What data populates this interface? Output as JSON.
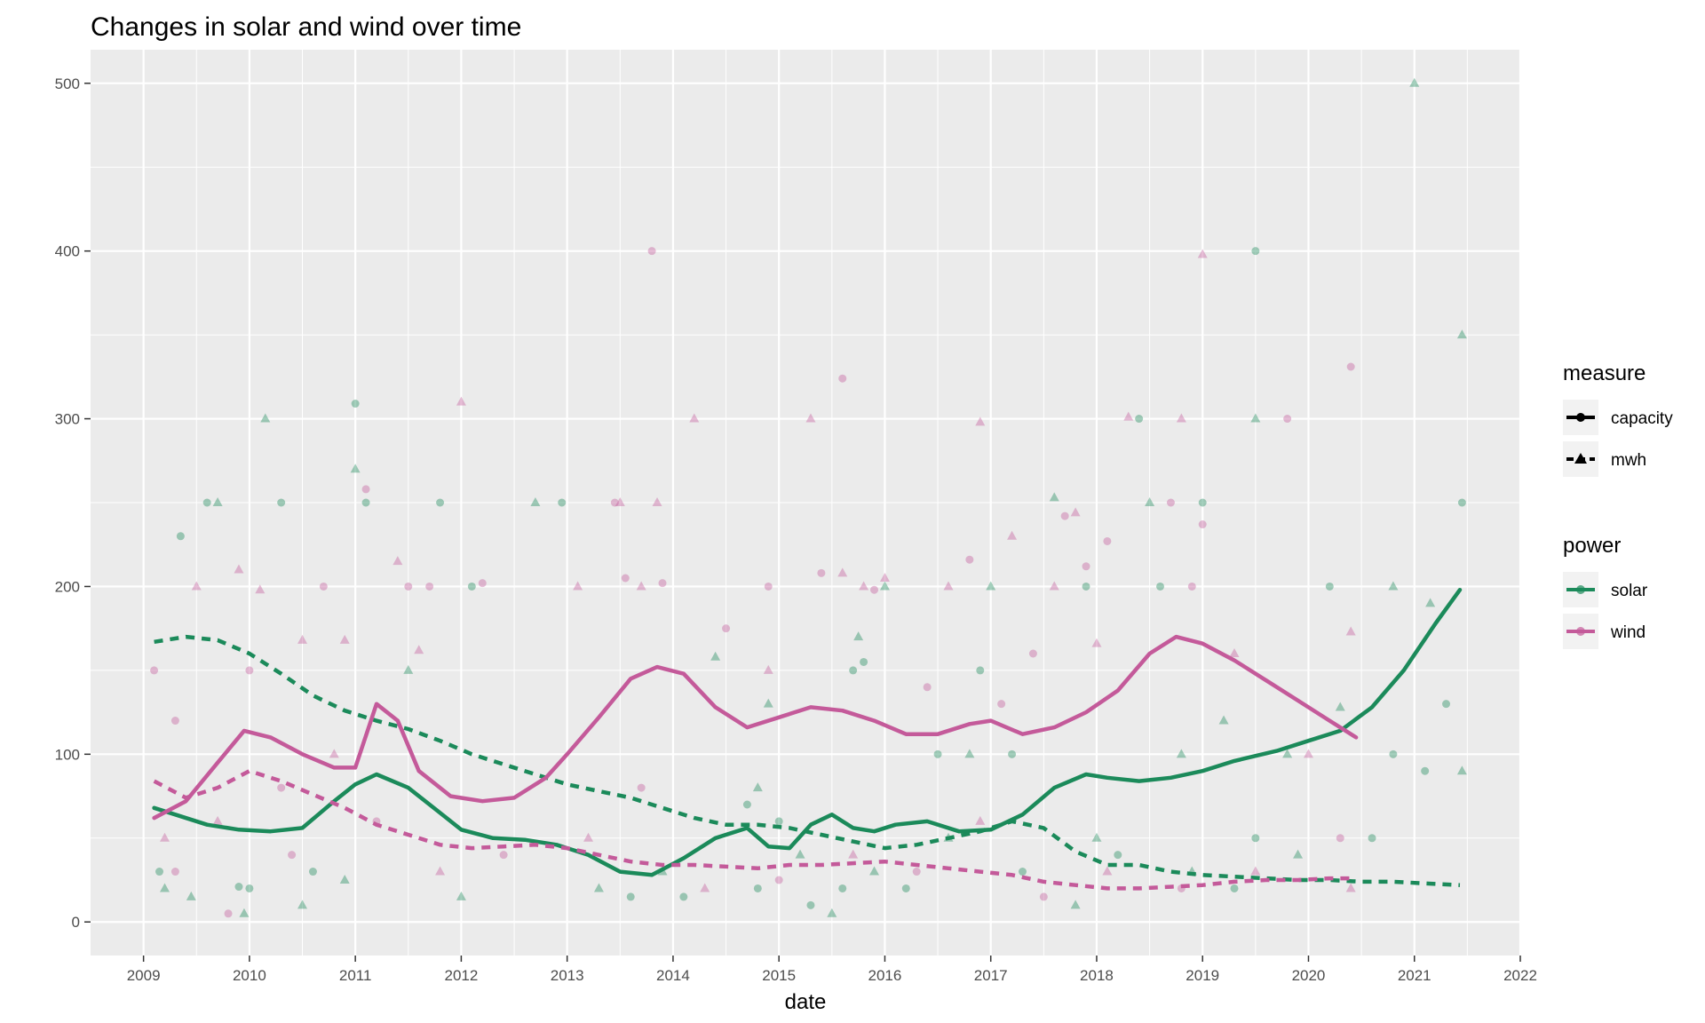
{
  "chart_data": {
    "type": "scatter",
    "title": "Changes in solar and wind over time",
    "xlabel": "date",
    "ylabel": "",
    "x_ticks": [
      "2009",
      "2010",
      "2011",
      "2012",
      "2013",
      "2014",
      "2015",
      "2016",
      "2017",
      "2018",
      "2019",
      "2020",
      "2021",
      "2022"
    ],
    "y_ticks": [
      "0",
      "100",
      "200",
      "300",
      "400",
      "500"
    ],
    "xlim": [
      2008.5,
      2022
    ],
    "ylim": [
      -20,
      520
    ],
    "grid": true,
    "legend_placement": "right",
    "legends": {
      "measure": {
        "title": "measure",
        "entries": [
          "capacity",
          "mwh"
        ]
      },
      "power": {
        "title": "power",
        "entries": [
          "solar",
          "wind"
        ]
      }
    },
    "colors": {
      "solar": "#1b8a5a",
      "wind": "#c45a9a",
      "panel": "#ebebeb",
      "grid": "#ffffff"
    },
    "series": [
      {
        "name": "solar",
        "measure": "capacity",
        "style": "solid",
        "x": [
          2009.1,
          2009.3,
          2009.6,
          2009.9,
          2010.2,
          2010.5,
          2010.8,
          2011.0,
          2011.2,
          2011.5,
          2011.8,
          2012.0,
          2012.3,
          2012.6,
          2012.9,
          2013.2,
          2013.5,
          2013.8,
          2014.1,
          2014.4,
          2014.7,
          2014.9,
          2015.1,
          2015.3,
          2015.5,
          2015.7,
          2015.9,
          2016.1,
          2016.4,
          2016.7,
          2017.0,
          2017.3,
          2017.6,
          2017.9,
          2018.1,
          2018.4,
          2018.7,
          2019.0,
          2019.3,
          2019.7,
          2020.0,
          2020.3,
          2020.6,
          2020.9,
          2021.2,
          2021.43
        ],
        "y": [
          68,
          64,
          58,
          55,
          54,
          56,
          72,
          82,
          88,
          80,
          65,
          55,
          50,
          49,
          46,
          40,
          30,
          28,
          38,
          50,
          56,
          45,
          44,
          58,
          64,
          56,
          54,
          58,
          60,
          54,
          55,
          64,
          80,
          88,
          86,
          84,
          86,
          90,
          96,
          102,
          108,
          114,
          128,
          150,
          178,
          198
        ]
      },
      {
        "name": "solar",
        "measure": "mwh",
        "style": "dashed",
        "x": [
          2009.1,
          2009.4,
          2009.7,
          2010.0,
          2010.3,
          2010.6,
          2010.9,
          2011.2,
          2011.5,
          2011.8,
          2012.1,
          2012.4,
          2012.7,
          2013.0,
          2013.3,
          2013.6,
          2013.9,
          2014.2,
          2014.5,
          2014.8,
          2015.1,
          2015.4,
          2015.7,
          2016.0,
          2016.3,
          2016.6,
          2016.9,
          2017.2,
          2017.5,
          2017.8,
          2018.1,
          2018.4,
          2018.7,
          2019.0,
          2019.3,
          2019.6,
          2019.9,
          2020.2,
          2020.5,
          2020.8,
          2021.1,
          2021.43
        ],
        "y": [
          167,
          170,
          168,
          160,
          148,
          135,
          126,
          120,
          115,
          108,
          100,
          94,
          88,
          82,
          78,
          74,
          68,
          62,
          58,
          58,
          56,
          52,
          48,
          44,
          46,
          50,
          54,
          60,
          56,
          42,
          34,
          34,
          30,
          28,
          27,
          26,
          25,
          25,
          24,
          24,
          23,
          22
        ]
      },
      {
        "name": "wind",
        "measure": "capacity",
        "style": "solid",
        "x": [
          2009.1,
          2009.4,
          2009.7,
          2009.95,
          2010.2,
          2010.5,
          2010.8,
          2011.0,
          2011.2,
          2011.4,
          2011.6,
          2011.9,
          2012.2,
          2012.5,
          2012.8,
          2013.0,
          2013.3,
          2013.6,
          2013.85,
          2014.1,
          2014.4,
          2014.7,
          2015.0,
          2015.3,
          2015.6,
          2015.9,
          2016.2,
          2016.5,
          2016.8,
          2017.0,
          2017.3,
          2017.6,
          2017.9,
          2018.2,
          2018.5,
          2018.75,
          2019.0,
          2019.3,
          2019.6,
          2019.9,
          2020.2,
          2020.45
        ],
        "y": [
          62,
          72,
          95,
          114,
          110,
          100,
          92,
          92,
          130,
          120,
          90,
          75,
          72,
          74,
          86,
          100,
          122,
          145,
          152,
          148,
          128,
          116,
          122,
          128,
          126,
          120,
          112,
          112,
          118,
          120,
          112,
          116,
          125,
          138,
          160,
          170,
          166,
          156,
          144,
          132,
          120,
          110
        ]
      },
      {
        "name": "wind",
        "measure": "mwh",
        "style": "dashed",
        "x": [
          2009.1,
          2009.4,
          2009.7,
          2010.0,
          2010.3,
          2010.6,
          2010.9,
          2011.2,
          2011.5,
          2011.8,
          2012.1,
          2012.4,
          2012.7,
          2013.0,
          2013.3,
          2013.6,
          2013.9,
          2014.2,
          2014.5,
          2014.8,
          2015.1,
          2015.4,
          2015.7,
          2016.0,
          2016.3,
          2016.6,
          2016.9,
          2017.2,
          2017.5,
          2017.8,
          2018.1,
          2018.4,
          2018.7,
          2019.0,
          2019.3,
          2019.6,
          2019.9,
          2020.2,
          2020.45
        ],
        "y": [
          84,
          74,
          80,
          90,
          84,
          76,
          68,
          58,
          52,
          46,
          44,
          45,
          46,
          44,
          40,
          36,
          34,
          34,
          33,
          32,
          34,
          34,
          35,
          36,
          34,
          32,
          30,
          28,
          24,
          22,
          20,
          20,
          21,
          22,
          24,
          25,
          25,
          26,
          26
        ]
      }
    ],
    "points": {
      "solar": [
        [
          2009.15,
          30
        ],
        [
          2009.2,
          20
        ],
        [
          2009.35,
          230
        ],
        [
          2009.45,
          15
        ],
        [
          2009.6,
          250
        ],
        [
          2009.7,
          250
        ],
        [
          2009.9,
          21
        ],
        [
          2009.95,
          5
        ],
        [
          2010.0,
          20
        ],
        [
          2010.15,
          300
        ],
        [
          2010.3,
          250
        ],
        [
          2010.5,
          10
        ],
        [
          2010.6,
          30
        ],
        [
          2010.9,
          25
        ],
        [
          2011.0,
          309
        ],
        [
          2011.0,
          270
        ],
        [
          2011.1,
          250
        ],
        [
          2011.5,
          150
        ],
        [
          2011.8,
          250
        ],
        [
          2012.0,
          15
        ],
        [
          2012.1,
          200
        ],
        [
          2012.7,
          250
        ],
        [
          2012.95,
          250
        ],
        [
          2013.3,
          20
        ],
        [
          2013.6,
          15
        ],
        [
          2013.9,
          30
        ],
        [
          2014.1,
          15
        ],
        [
          2014.4,
          158
        ],
        [
          2014.8,
          20
        ],
        [
          2014.9,
          130
        ],
        [
          2015.3,
          10
        ],
        [
          2015.5,
          5
        ],
        [
          2015.7,
          150
        ],
        [
          2015.75,
          170
        ],
        [
          2015.8,
          155
        ],
        [
          2016.0,
          200
        ],
        [
          2016.5,
          100
        ],
        [
          2016.8,
          100
        ],
        [
          2016.9,
          150
        ],
        [
          2017.0,
          200
        ],
        [
          2017.2,
          100
        ],
        [
          2017.6,
          253
        ],
        [
          2017.9,
          200
        ],
        [
          2018.0,
          50
        ],
        [
          2018.4,
          300
        ],
        [
          2018.5,
          250
        ],
        [
          2018.6,
          200
        ],
        [
          2018.8,
          100
        ],
        [
          2019.0,
          250
        ],
        [
          2019.2,
          120
        ],
        [
          2019.5,
          50
        ],
        [
          2019.5,
          300
        ],
        [
          2019.5,
          400
        ],
        [
          2019.8,
          100
        ],
        [
          2020.2,
          200
        ],
        [
          2020.3,
          128
        ],
        [
          2020.6,
          50
        ],
        [
          2020.8,
          200
        ],
        [
          2020.8,
          100
        ],
        [
          2021.0,
          500
        ],
        [
          2021.1,
          90
        ],
        [
          2021.15,
          190
        ],
        [
          2021.3,
          130
        ],
        [
          2021.45,
          350
        ],
        [
          2021.45,
          250
        ],
        [
          2021.45,
          90
        ],
        [
          2014.7,
          70
        ],
        [
          2014.8,
          80
        ],
        [
          2015.0,
          60
        ],
        [
          2015.2,
          40
        ],
        [
          2015.6,
          20
        ],
        [
          2015.9,
          30
        ],
        [
          2016.2,
          20
        ],
        [
          2016.6,
          50
        ],
        [
          2017.3,
          30
        ],
        [
          2017.8,
          10
        ],
        [
          2018.2,
          40
        ],
        [
          2018.9,
          30
        ],
        [
          2019.3,
          20
        ],
        [
          2019.9,
          40
        ]
      ],
      "wind": [
        [
          2009.1,
          150
        ],
        [
          2009.2,
          50
        ],
        [
          2009.3,
          120
        ],
        [
          2009.5,
          200
        ],
        [
          2009.8,
          5
        ],
        [
          2009.9,
          210
        ],
        [
          2010.0,
          150
        ],
        [
          2010.1,
          198
        ],
        [
          2010.3,
          80
        ],
        [
          2010.5,
          168
        ],
        [
          2010.7,
          200
        ],
        [
          2010.9,
          168
        ],
        [
          2011.1,
          258
        ],
        [
          2011.4,
          215
        ],
        [
          2011.5,
          200
        ],
        [
          2011.6,
          162
        ],
        [
          2011.7,
          200
        ],
        [
          2012.0,
          310
        ],
        [
          2012.2,
          202
        ],
        [
          2013.1,
          200
        ],
        [
          2013.45,
          250
        ],
        [
          2013.5,
          250
        ],
        [
          2013.55,
          205
        ],
        [
          2013.7,
          200
        ],
        [
          2013.8,
          400
        ],
        [
          2013.85,
          250
        ],
        [
          2013.9,
          202
        ],
        [
          2014.2,
          300
        ],
        [
          2014.5,
          175
        ],
        [
          2014.9,
          150
        ],
        [
          2014.9,
          200
        ],
        [
          2015.3,
          300
        ],
        [
          2015.4,
          208
        ],
        [
          2015.6,
          208
        ],
        [
          2015.6,
          324
        ],
        [
          2015.8,
          200
        ],
        [
          2015.9,
          198
        ],
        [
          2016.0,
          205
        ],
        [
          2016.4,
          140
        ],
        [
          2016.6,
          200
        ],
        [
          2016.8,
          216
        ],
        [
          2016.9,
          298
        ],
        [
          2017.1,
          130
        ],
        [
          2017.2,
          230
        ],
        [
          2017.4,
          160
        ],
        [
          2017.6,
          200
        ],
        [
          2017.7,
          242
        ],
        [
          2017.8,
          244
        ],
        [
          2017.9,
          212
        ],
        [
          2018.0,
          166
        ],
        [
          2018.1,
          227
        ],
        [
          2018.3,
          301
        ],
        [
          2018.7,
          250
        ],
        [
          2018.8,
          300
        ],
        [
          2018.9,
          200
        ],
        [
          2019.0,
          398
        ],
        [
          2019.0,
          237
        ],
        [
          2019.3,
          160
        ],
        [
          2019.8,
          300
        ],
        [
          2020.0,
          100
        ],
        [
          2020.4,
          331
        ],
        [
          2020.4,
          173
        ],
        [
          2020.3,
          50
        ],
        [
          2020.4,
          20
        ],
        [
          2009.3,
          30
        ],
        [
          2009.7,
          60
        ],
        [
          2010.4,
          40
        ],
        [
          2010.8,
          100
        ],
        [
          2011.2,
          60
        ],
        [
          2011.8,
          30
        ],
        [
          2012.4,
          40
        ],
        [
          2013.2,
          50
        ],
        [
          2013.7,
          80
        ],
        [
          2014.3,
          20
        ],
        [
          2015.0,
          25
        ],
        [
          2015.7,
          40
        ],
        [
          2016.3,
          30
        ],
        [
          2016.9,
          60
        ],
        [
          2017.5,
          15
        ],
        [
          2018.1,
          30
        ],
        [
          2018.8,
          20
        ],
        [
          2019.5,
          30
        ]
      ]
    }
  }
}
